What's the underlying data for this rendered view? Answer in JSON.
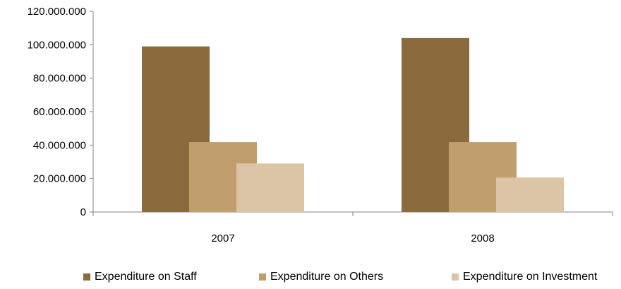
{
  "chart_data": {
    "type": "bar",
    "categories": [
      "2007",
      "2008"
    ],
    "series": [
      {
        "name": "Expenditure on Staff",
        "values": [
          99000000,
          104000000
        ],
        "color": "#8B6B3E"
      },
      {
        "name": "Expenditure on Others",
        "values": [
          41800000,
          41800000
        ],
        "color": "#C09E6E"
      },
      {
        "name": "Expenditure on Investment",
        "values": [
          29000000,
          20600000
        ],
        "color": "#DCC5A6"
      }
    ],
    "y_ticks": [
      "0",
      "20.000.000",
      "40.000.000",
      "60.000.000",
      "80.000.000",
      "100.000.000",
      "120.000.000"
    ],
    "ylim": [
      0,
      120000000
    ],
    "title": "",
    "xlabel": "",
    "ylabel": "",
    "grid": false,
    "legend_position": "bottom"
  }
}
